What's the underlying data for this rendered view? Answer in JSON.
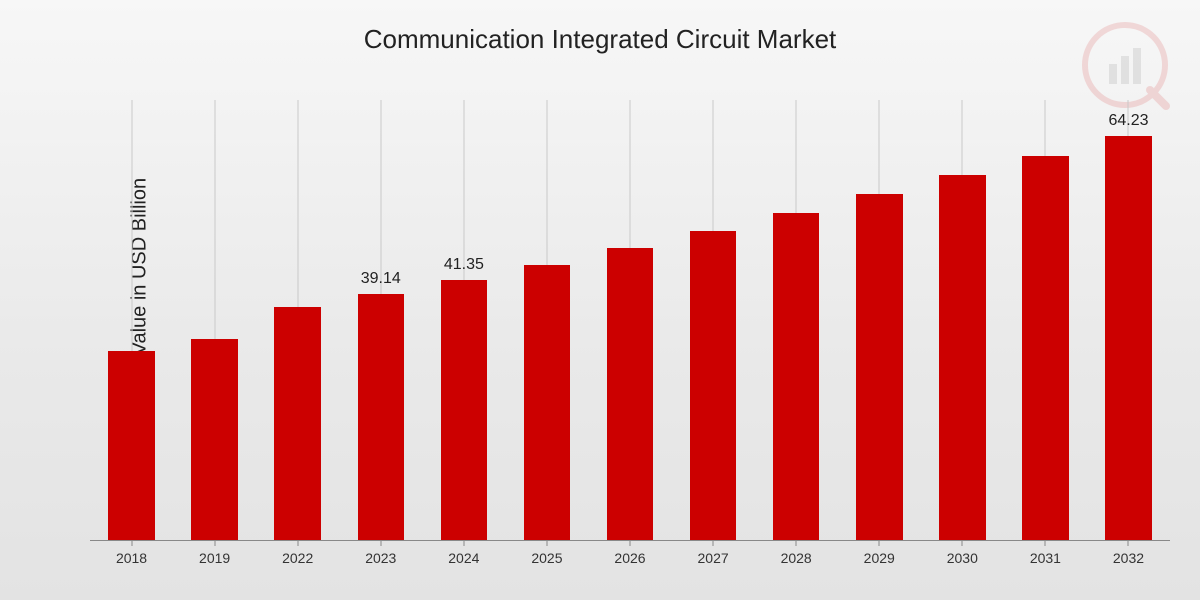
{
  "chart": {
    "type": "bar",
    "title": "Communication Integrated Circuit Market",
    "ylabel": "Market Value in USD Billion",
    "categories": [
      "2018",
      "2019",
      "2022",
      "2023",
      "2024",
      "2025",
      "2026",
      "2027",
      "2028",
      "2029",
      "2030",
      "2031",
      "2032"
    ],
    "values": [
      30.0,
      32.0,
      37.0,
      39.14,
      41.35,
      43.8,
      46.4,
      49.1,
      52.0,
      55.0,
      58.1,
      61.1,
      64.23
    ],
    "value_labels_show": [
      false,
      false,
      false,
      true,
      true,
      false,
      false,
      false,
      false,
      false,
      false,
      false,
      true
    ],
    "value_labels_text": [
      "",
      "",
      "",
      "39.14",
      "41.35",
      "",
      "",
      "",
      "",
      "",
      "",
      "",
      "64.23"
    ],
    "bar_color": "#cc0000",
    "bar_width": 0.56,
    "ymin": 0,
    "ymax": 70,
    "title_fontsize": 26,
    "ylabel_fontsize": 20,
    "xlabel_fontsize": 14,
    "value_label_fontsize": 16,
    "background_gradient": [
      "#f7f7f7",
      "#e3e3e3"
    ],
    "gridline_color": "#c9c9c9",
    "axis_color": "#888",
    "text_color": "#222"
  },
  "watermark": {
    "name": "logo-watermark",
    "primary_color": "#cc0000",
    "secondary_color": "#555555",
    "opacity": 0.12
  }
}
